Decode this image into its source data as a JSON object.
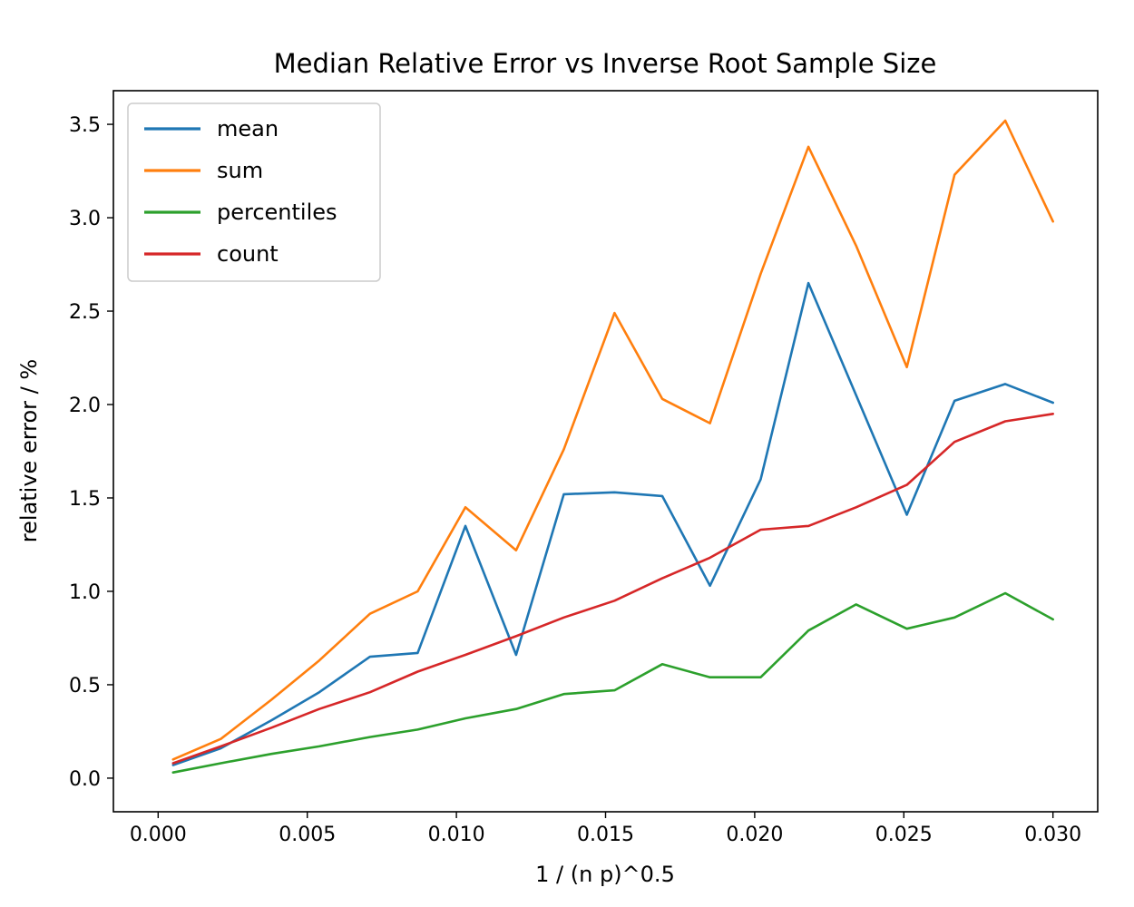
{
  "chart_data": {
    "type": "line",
    "title": "Median Relative Error vs Inverse Root Sample Size",
    "xlabel": "1 / (n p)^0.5",
    "ylabel": "relative error / %",
    "grid": false,
    "legend_position": "upper left",
    "xlim": [
      -0.0015,
      0.0315
    ],
    "ylim": [
      -0.18,
      3.68
    ],
    "x_tick_values": [
      0.0,
      0.005,
      0.01,
      0.015,
      0.02,
      0.025,
      0.03
    ],
    "x_tick_labels": [
      "0.000",
      "0.005",
      "0.010",
      "0.015",
      "0.020",
      "0.025",
      "0.030"
    ],
    "y_tick_values": [
      0.0,
      0.5,
      1.0,
      1.5,
      2.0,
      2.5,
      3.0,
      3.5
    ],
    "y_tick_labels": [
      "0.0",
      "0.5",
      "1.0",
      "1.5",
      "2.0",
      "2.5",
      "3.0",
      "3.5"
    ],
    "x": [
      0.0005,
      0.0021,
      0.0038,
      0.0054,
      0.0071,
      0.0087,
      0.0103,
      0.012,
      0.0136,
      0.0153,
      0.0169,
      0.0185,
      0.0202,
      0.0218,
      0.0234,
      0.0251,
      0.0267,
      0.0284,
      0.03
    ],
    "series": [
      {
        "name": "mean",
        "color": "#1f77b4",
        "values": [
          0.07,
          0.16,
          0.31,
          0.46,
          0.65,
          0.67,
          1.35,
          0.66,
          1.52,
          1.53,
          1.51,
          1.03,
          1.6,
          2.65,
          2.05,
          1.41,
          2.02,
          2.11,
          2.01
        ]
      },
      {
        "name": "sum",
        "color": "#ff7f0e",
        "values": [
          0.1,
          0.21,
          0.42,
          0.63,
          0.88,
          1.0,
          1.45,
          1.22,
          1.76,
          2.49,
          2.03,
          1.9,
          2.7,
          3.38,
          2.85,
          2.2,
          3.23,
          3.52,
          2.98
        ]
      },
      {
        "name": "percentiles",
        "color": "#2ca02c",
        "values": [
          0.03,
          0.08,
          0.13,
          0.17,
          0.22,
          0.26,
          0.32,
          0.37,
          0.45,
          0.47,
          0.61,
          0.54,
          0.54,
          0.79,
          0.93,
          0.8,
          0.86,
          0.99,
          0.85
        ]
      },
      {
        "name": "count",
        "color": "#d62728",
        "values": [
          0.08,
          0.17,
          0.27,
          0.37,
          0.46,
          0.57,
          0.66,
          0.76,
          0.86,
          0.95,
          1.07,
          1.18,
          1.33,
          1.35,
          1.45,
          1.57,
          1.8,
          1.91,
          1.95
        ]
      }
    ]
  }
}
